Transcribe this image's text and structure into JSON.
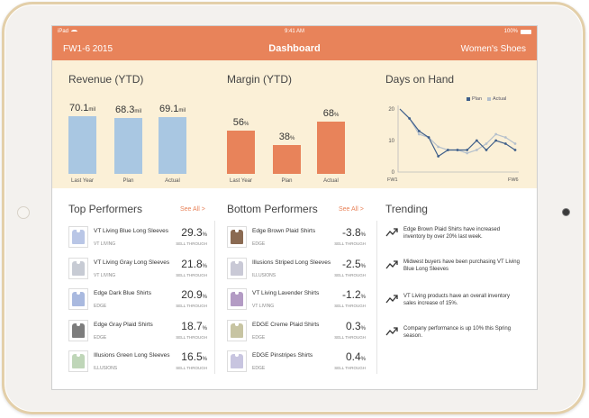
{
  "status_bar": {
    "carrier": "iPad",
    "time": "9:41 AM",
    "battery": "100%"
  },
  "nav": {
    "left": "FW1-6 2015",
    "title": "Dashboard",
    "right": "Women's Shoes"
  },
  "revenue": {
    "title": "Revenue (YTD)",
    "unit": "mil",
    "bars": [
      {
        "label": "Last Year",
        "value": "70.1",
        "num": 70.1
      },
      {
        "label": "Plan",
        "value": "68.3",
        "num": 68.3
      },
      {
        "label": "Actual",
        "value": "69.1",
        "num": 69.1
      }
    ]
  },
  "margin": {
    "title": "Margin (YTD)",
    "unit": "%",
    "bars": [
      {
        "label": "Last Year",
        "value": "56",
        "num": 56
      },
      {
        "label": "Plan",
        "value": "38",
        "num": 38
      },
      {
        "label": "Actual",
        "value": "68",
        "num": 68
      }
    ]
  },
  "days_on_hand": {
    "title": "Days on Hand",
    "y_ticks": [
      "20",
      "10",
      "0"
    ],
    "x_start": "FW1",
    "x_end": "FW6",
    "legend_plan": "Plan",
    "legend_actual": "Actual",
    "plan_color": "#3f5f8a",
    "actual_color": "#b5c0cc",
    "ylim": [
      0,
      20
    ],
    "plan": [
      20,
      17,
      13,
      11,
      5,
      7,
      7,
      7,
      10,
      7,
      10,
      9,
      7
    ],
    "actual": [
      20,
      17,
      12,
      11,
      8,
      7,
      7,
      6,
      7,
      9,
      12,
      11,
      9
    ]
  },
  "top": {
    "title": "Top Performers",
    "see_all": "See All >",
    "value_label": "SELL THROUGH",
    "items": [
      {
        "name": "VT Living Blue Long Sleeves",
        "brand": "VT LIVING",
        "value": "29.3",
        "unit": "%",
        "shirt": "#b9c6e6"
      },
      {
        "name": "VT Living Gray Long Sleeves",
        "brand": "VT LIVING",
        "value": "21.8",
        "unit": "%",
        "shirt": "#c7cbd4"
      },
      {
        "name": "Edge Dark Blue Shirts",
        "brand": "EDGE",
        "value": "20.9",
        "unit": "%",
        "shirt": "#a9b9df"
      },
      {
        "name": "Edge Gray Plaid Shirts",
        "brand": "EDGE",
        "value": "18.7",
        "unit": "%",
        "shirt": "#7d7d7d"
      },
      {
        "name": "Illusions Green Long Sleeves",
        "brand": "ILLUSIONS",
        "value": "16.5",
        "unit": "%",
        "shirt": "#bfd6b8"
      }
    ]
  },
  "bottom": {
    "title": "Bottom Performers",
    "see_all": "See All >",
    "value_label": "SELL THROUGH",
    "items": [
      {
        "name": "Edge Brown Plaid Shirts",
        "brand": "EDGE",
        "value": "-3.8",
        "unit": "%",
        "shirt": "#8a6a52"
      },
      {
        "name": "Illusions Striped Long Sleeves",
        "brand": "ILLUSIONS",
        "value": "-2.5",
        "unit": "%",
        "shirt": "#c9c9d6"
      },
      {
        "name": "VT Living Lavender Shirts",
        "brand": "VT LIVING",
        "value": "-1.2",
        "unit": "%",
        "shirt": "#b39bc4"
      },
      {
        "name": "EDGE Creme Plaid Shirts",
        "brand": "EDGE",
        "value": "0.3",
        "unit": "%",
        "shirt": "#c7c4a2"
      },
      {
        "name": "EDGE Pinstripes Shirts",
        "brand": "EDGE",
        "value": "0.4",
        "unit": "%",
        "shirt": "#c8c5e0"
      }
    ]
  },
  "trending": {
    "title": "Trending",
    "items": [
      {
        "text": "Edge Brown Plaid Shirts have increased inventory by over 20% last week."
      },
      {
        "text": "Midwest buyers have been purchasing VT Living Blue Long Sleeves"
      },
      {
        "text": "VT Living products have an overall inventory sales increase of 15%."
      },
      {
        "text": "Company performance is up 10% this Spring season."
      }
    ]
  },
  "colors": {
    "accent": "#e8835a",
    "panel": "#fbf0d7",
    "revenue_bar": "#a9c7e2",
    "margin_bar": "#e8835a"
  }
}
